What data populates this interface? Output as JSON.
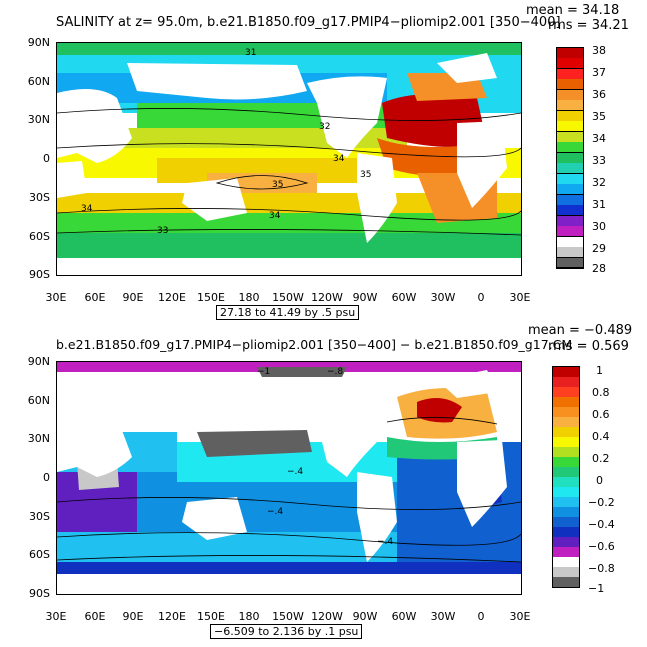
{
  "panel_top": {
    "title": "SALINITY at z=   95.0m, b.e21.B1850.f09_g17.PMIP4−pliomip2.001 [350−400]",
    "mean_label": "mean = 34.18",
    "rms_label": "rms = 34.21",
    "range_label": "27.18 to 41.49 by .5 psu",
    "y_ticks": [
      "90N",
      "60N",
      "30N",
      "0",
      "30S",
      "60S",
      "90S"
    ],
    "x_ticks": [
      "30E",
      "60E",
      "90E",
      "120E",
      "150E",
      "180",
      "150W",
      "120W",
      "90W",
      "60W",
      "30W",
      "0",
      "30E"
    ],
    "contour_labels": [
      "31",
      "32",
      "34",
      "35",
      "34",
      "33",
      "35",
      "34"
    ],
    "colorbar": {
      "labels": [
        "38",
        "37",
        "36",
        "35",
        "34",
        "33",
        "32",
        "31",
        "30",
        "29",
        "28"
      ],
      "colors": [
        "#c00000",
        "#e00000",
        "#ff2020",
        "#e86000",
        "#f59028",
        "#f8b040",
        "#f0d000",
        "#f8f800",
        "#c8e020",
        "#38d838",
        "#20c060",
        "#20d0b0",
        "#20d8f0",
        "#10a8f0",
        "#1070e0",
        "#1030d0",
        "#8020c8",
        "#c020c0",
        "#ffffff",
        "#c8c8c8",
        "#606060"
      ]
    }
  },
  "panel_bottom": {
    "title": "b.e21.B1850.f09_g17.PMIP4−pliomip2.001 [350−400] − b.e21.B1850.f09_g17.CM",
    "mean_label": "mean = −0.489",
    "rms_label": "rms = 0.569",
    "range_label": "−6.509 to 2.136 by .1 psu",
    "y_ticks": [
      "90N",
      "60N",
      "30N",
      "0",
      "30S",
      "60S",
      "90S"
    ],
    "x_ticks": [
      "30E",
      "60E",
      "90E",
      "120E",
      "150E",
      "180",
      "150W",
      "120W",
      "90W",
      "60W",
      "30W",
      "0",
      "30E"
    ],
    "contour_labels": [
      "−1",
      "−.8",
      "−.4",
      "−.4",
      "−.4"
    ],
    "colorbar": {
      "labels": [
        "1",
        "0.8",
        "0.6",
        "0.4",
        "0.2",
        "0",
        "−0.2",
        "−0.4",
        "−0.6",
        "−0.8",
        "−1"
      ],
      "colors": [
        "#c00000",
        "#e82020",
        "#ff4020",
        "#f07000",
        "#f89020",
        "#f8b040",
        "#f0d000",
        "#f8f800",
        "#b0e020",
        "#38d838",
        "#20c878",
        "#20e0c0",
        "#20e8f0",
        "#20c0f0",
        "#1090e0",
        "#1060d0",
        "#1030c0",
        "#6020c0",
        "#c020c0",
        "#ffffff",
        "#c8c8c8",
        "#606060"
      ]
    }
  },
  "colors": {
    "land": "#ffffff",
    "frame": "#000000"
  }
}
